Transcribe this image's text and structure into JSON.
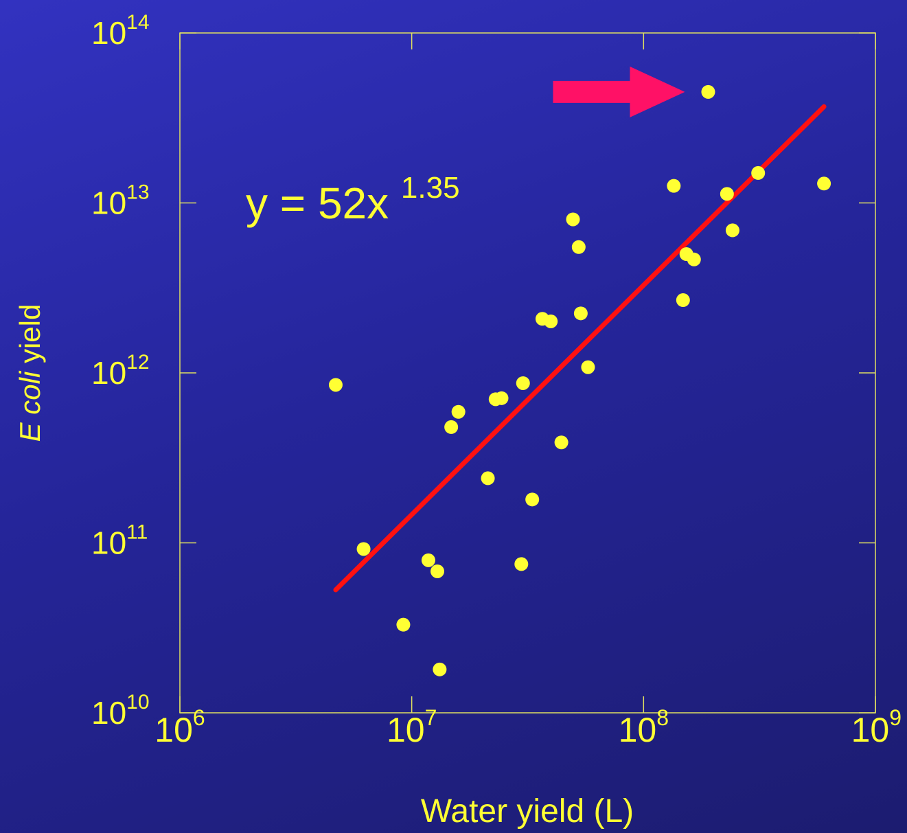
{
  "chart_data": {
    "type": "scatter",
    "xlabel": "Water yield (L)",
    "ylabel_italic": "E coli",
    "ylabel_rest": " yield",
    "x_scale": "log",
    "y_scale": "log",
    "xlim": [
      1000000,
      1000000000
    ],
    "ylim": [
      10000000000,
      100000000000000
    ],
    "x_ticks": [
      {
        "base": "10",
        "exp": "6",
        "value": 1000000
      },
      {
        "base": "10",
        "exp": "7",
        "value": 10000000
      },
      {
        "base": "10",
        "exp": "8",
        "value": 100000000
      },
      {
        "base": "10",
        "exp": "9",
        "value": 1000000000
      }
    ],
    "y_ticks": [
      {
        "base": "10",
        "exp": "10",
        "value": 10000000000
      },
      {
        "base": "10",
        "exp": "11",
        "value": 100000000000
      },
      {
        "base": "10",
        "exp": "12",
        "value": 1000000000000
      },
      {
        "base": "10",
        "exp": "13",
        "value": 10000000000000
      },
      {
        "base": "10",
        "exp": "14",
        "value": 100000000000000
      }
    ],
    "grid": false,
    "equation": {
      "main": "y = 52x",
      "exp": "1.35"
    },
    "fit_line": {
      "coefficient": 52,
      "exponent": 1.35,
      "x_start": 4700000,
      "x_end": 600000000,
      "color": "#ff1111"
    },
    "arrow": {
      "color": "#ff1166",
      "points_to": [
        190000000,
        45000000000000
      ]
    },
    "points": [
      {
        "x": 4700000,
        "y": 850000000000
      },
      {
        "x": 6200000,
        "y": 92000000000
      },
      {
        "x": 9200000,
        "y": 33000000000
      },
      {
        "x": 11800000,
        "y": 79000000000
      },
      {
        "x": 12900000,
        "y": 68000000000
      },
      {
        "x": 13200000,
        "y": 18000000000
      },
      {
        "x": 14800000,
        "y": 480000000000
      },
      {
        "x": 15900000,
        "y": 590000000000
      },
      {
        "x": 21300000,
        "y": 240000000000
      },
      {
        "x": 23000000,
        "y": 700000000000
      },
      {
        "x": 24400000,
        "y": 710000000000
      },
      {
        "x": 29700000,
        "y": 75000000000
      },
      {
        "x": 30200000,
        "y": 870000000000
      },
      {
        "x": 33100000,
        "y": 180000000000
      },
      {
        "x": 36600000,
        "y": 2080000000000
      },
      {
        "x": 39800000,
        "y": 2010000000000
      },
      {
        "x": 44200000,
        "y": 390000000000
      },
      {
        "x": 49600000,
        "y": 8000000000000
      },
      {
        "x": 52500000,
        "y": 5500000000000
      },
      {
        "x": 53600000,
        "y": 2240000000000
      },
      {
        "x": 57600000,
        "y": 1080000000000
      },
      {
        "x": 135000000,
        "y": 12600000000000
      },
      {
        "x": 148000000,
        "y": 2680000000000
      },
      {
        "x": 153000000,
        "y": 5000000000000
      },
      {
        "x": 165000000,
        "y": 4650000000000
      },
      {
        "x": 190000000,
        "y": 45000000000000
      },
      {
        "x": 229000000,
        "y": 11300000000000
      },
      {
        "x": 242000000,
        "y": 6900000000000
      },
      {
        "x": 312000000,
        "y": 15000000000000
      },
      {
        "x": 600000000,
        "y": 13000000000000
      }
    ],
    "point_color": "#ffff33",
    "axis_color": "#e0e060"
  }
}
